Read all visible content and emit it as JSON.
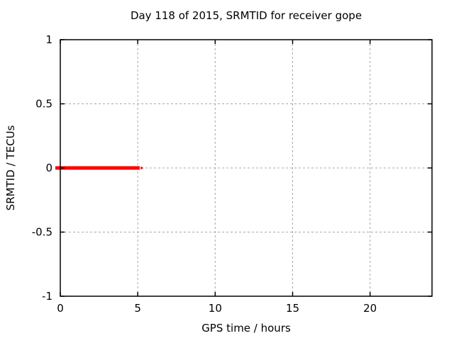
{
  "chart_data": {
    "type": "line",
    "title": "Day 118 of 2015, SRMTID for receiver gope",
    "xlabel": "GPS time / hours",
    "ylabel": "SRMTID / TECUs",
    "xlim": [
      0,
      24
    ],
    "ylim": [
      -1,
      1
    ],
    "xticks": [
      0,
      5,
      10,
      15,
      20
    ],
    "yticks": [
      -1,
      -0.5,
      0,
      0.5,
      1
    ],
    "grid": true,
    "grid_color": "#a8a8a8",
    "border_color": "#000000",
    "background_color": "#ffffff",
    "legend_position": "none",
    "series": [
      {
        "name": "SRMTID",
        "color": "#ff0000",
        "linewidth": 5,
        "x": [
          -0.32,
          5.13
        ],
        "y": [
          0,
          0
        ]
      },
      {
        "name": "SRMTID-tail",
        "color": "#ff0000",
        "linewidth": 3,
        "x": [
          5.18,
          5.32
        ],
        "y": [
          0,
          0
        ]
      }
    ]
  }
}
